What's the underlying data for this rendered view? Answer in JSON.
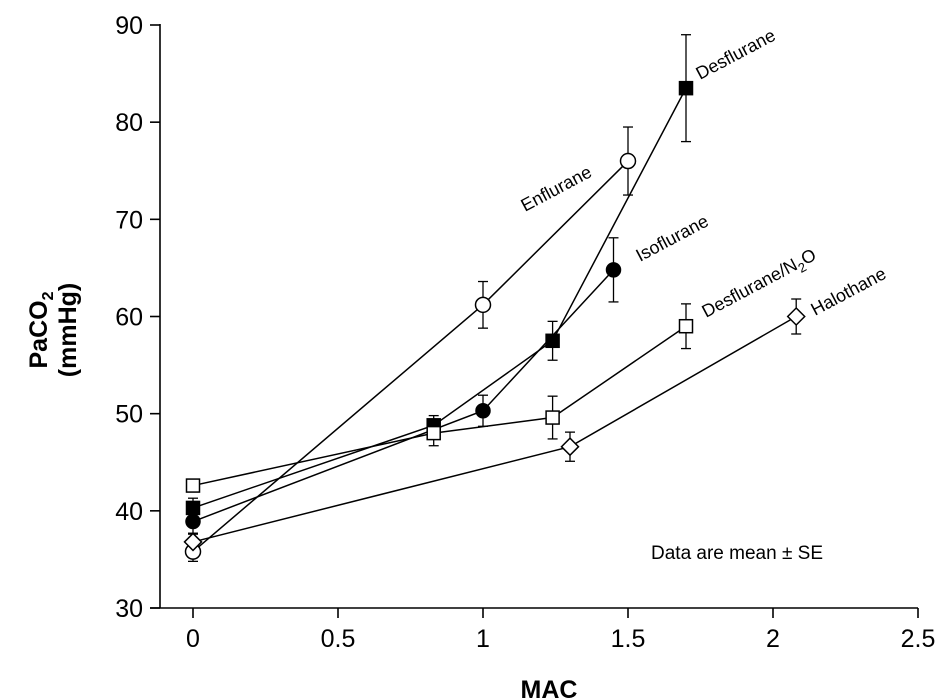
{
  "chart_data": {
    "type": "line",
    "xlabel": "MAC",
    "ylabel_line1": "PaCO",
    "ylabel_sub": "2",
    "ylabel_line2": "(mmHg)",
    "xlim": [
      0,
      2.5
    ],
    "ylim": [
      30,
      90
    ],
    "xticks": [
      "0",
      "0.5",
      "1",
      "1.5",
      "2",
      "2.5"
    ],
    "yticks": [
      "30",
      "40",
      "50",
      "60",
      "70",
      "80",
      "90"
    ],
    "grid": false,
    "annotation": "Data are mean ± SE",
    "series": [
      {
        "name": "Enflurane",
        "marker": "open-circle",
        "x": [
          0,
          1.0,
          1.5
        ],
        "y": [
          35.8,
          61.2,
          76.0
        ],
        "se": [
          1.0,
          2.4,
          3.5
        ]
      },
      {
        "name": "Desflurane",
        "marker": "filled-square",
        "x": [
          0,
          0.83,
          1.24,
          1.7
        ],
        "y": [
          40.3,
          48.8,
          57.5,
          83.5
        ],
        "se": [
          1.0,
          1.0,
          2.0,
          5.5
        ]
      },
      {
        "name": "Isoflurane",
        "marker": "filled-circle",
        "x": [
          0,
          1.0,
          1.45
        ],
        "y": [
          38.9,
          50.3,
          64.8
        ],
        "se": [
          1.2,
          1.6,
          3.3
        ]
      },
      {
        "name_main": "Desflurane/N",
        "name_sub": "2",
        "name_tail": "O",
        "marker": "open-square",
        "x": [
          0,
          0.83,
          1.24,
          1.7
        ],
        "y": [
          42.6,
          48.0,
          49.6,
          59.0
        ],
        "se": [
          0.6,
          1.3,
          2.2,
          2.3
        ]
      },
      {
        "name": "Halothane",
        "marker": "open-diamond",
        "x": [
          0,
          1.3,
          2.08
        ],
        "y": [
          36.8,
          46.6,
          60.0
        ],
        "se": [
          0.8,
          1.5,
          1.8
        ]
      }
    ]
  }
}
